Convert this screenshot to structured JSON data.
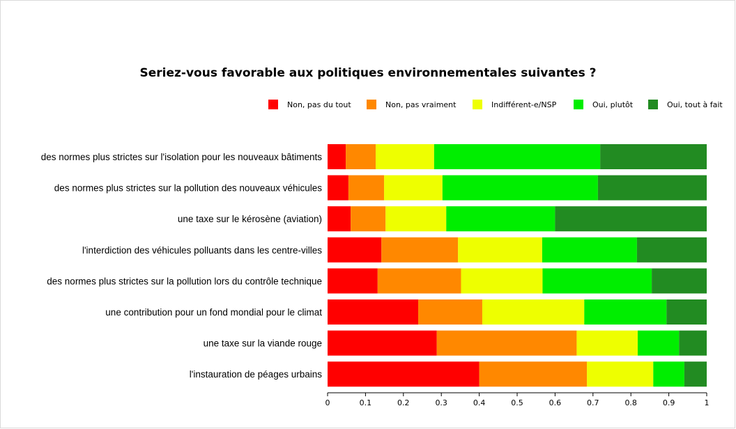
{
  "chart_data": {
    "type": "bar",
    "orientation": "horizontal",
    "stacked": true,
    "title": "Seriez-vous favorable aux politiques environnementales suivantes ?",
    "xlabel": "",
    "ylabel": "",
    "xlim": [
      0,
      1
    ],
    "x_ticks": [
      "0",
      "0.1",
      "0.2",
      "0.3",
      "0.4",
      "0.5",
      "0.6",
      "0.7",
      "0.8",
      "0.9",
      "1"
    ],
    "grid": false,
    "legend_position": "top-right",
    "categories": [
      "des normes plus strictes sur l'isolation pour les nouveaux bâtiments",
      "des normes plus strictes sur la pollution des nouveaux véhicules",
      "une taxe sur le kérosène (aviation)",
      "l'interdiction des véhicules polluants dans les centre-villes",
      "des normes plus strictes sur la pollution lors du contrôle technique",
      "une contribution pour un fond mondial pour le climat",
      "une taxe sur la viande rouge",
      "l'instauration de péages urbains"
    ],
    "series": [
      {
        "name": "Non, pas du tout",
        "color": "#ff0000",
        "values": [
          0.048,
          0.055,
          0.061,
          0.142,
          0.132,
          0.239,
          0.288,
          0.4
        ]
      },
      {
        "name": "Non, pas vraiment",
        "color": "#ff8800",
        "values": [
          0.079,
          0.094,
          0.092,
          0.202,
          0.22,
          0.169,
          0.369,
          0.284
        ]
      },
      {
        "name": "Indifférent-e/NSP",
        "color": "#eeff00",
        "values": [
          0.154,
          0.154,
          0.16,
          0.222,
          0.215,
          0.269,
          0.161,
          0.175
        ]
      },
      {
        "name": "Oui, plutôt",
        "color": "#00ee00",
        "values": [
          0.438,
          0.41,
          0.287,
          0.25,
          0.288,
          0.217,
          0.109,
          0.082
        ]
      },
      {
        "name": "Oui, tout à fait",
        "color": "#228b22",
        "values": [
          0.281,
          0.287,
          0.4,
          0.184,
          0.145,
          0.106,
          0.073,
          0.059
        ]
      }
    ]
  }
}
